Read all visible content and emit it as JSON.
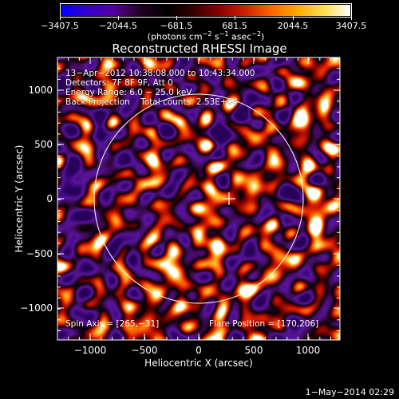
{
  "colorbar": {
    "tick_labels": [
      "−3407.5",
      "−2044.5",
      "−681.5",
      "681.5",
      "2044.5",
      "3407.5"
    ],
    "units_prefix": "(photons cm",
    "units_exp1": "−2",
    "units_mid1": " s",
    "units_exp2": "−1",
    "units_mid2": " asec",
    "units_exp3": "−2",
    "units_suffix": ")",
    "colors": [
      "#0000ff",
      "#3300cc",
      "#550099",
      "#220022",
      "#000000",
      "#330000",
      "#880000",
      "#cc2200",
      "#ff6600",
      "#ffaa00",
      "#ffdd55",
      "#ffffff"
    ]
  },
  "title": "Reconstructed RHESSI Image",
  "info": {
    "line1": "13−Apr−2012 10:38:08.000 to 10:43:34.000",
    "line2": "Detectors: 7F 8F 9F, Att 0",
    "line3": "Energy Range: 6.0 − 25.0 keV",
    "line4": "Back Projection    Total counts: 2.53E+04"
  },
  "footer": {
    "spin_axis": "Spin Axis = [265,−31]",
    "flare_position": "Flare Position = [170,206]"
  },
  "axes": {
    "xlabel": "Heliocentric X (arcsec)",
    "ylabel": "Heliocentric Y (arcsec)",
    "xticks": [
      "−1000",
      "−500",
      "0",
      "500",
      "1000"
    ],
    "yticks": [
      "1000",
      "500",
      "0",
      "−500",
      "−1000"
    ]
  },
  "date_stamp": "1−May−2014 02:29"
}
